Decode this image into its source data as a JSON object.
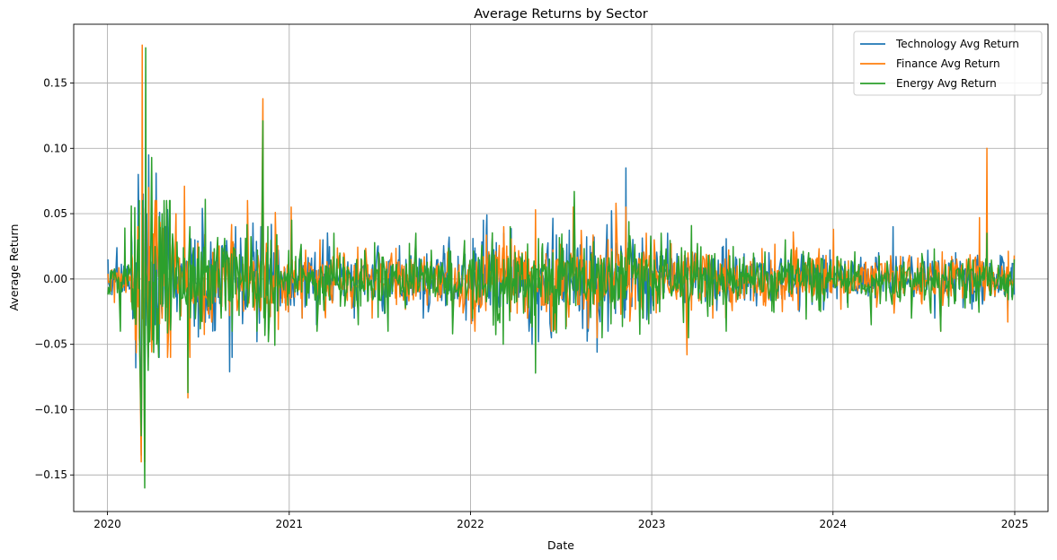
{
  "chart_data": {
    "type": "line",
    "title": "Average Returns by Sector",
    "xlabel": "Date",
    "ylabel": "Average Return",
    "x_range": [
      "2020-01-02",
      "2024-12-31"
    ],
    "xlim": [
      "2019-10-25",
      "2025-03-09"
    ],
    "ylim": [
      -0.178,
      0.195
    ],
    "x_ticks": [
      "2020",
      "2021",
      "2022",
      "2023",
      "2024",
      "2025"
    ],
    "y_ticks": [
      "-0.15",
      "-0.10",
      "-0.05",
      "0.00",
      "0.05",
      "0.10",
      "0.15"
    ],
    "grid": true,
    "legend_position": "top-right",
    "series": [
      {
        "name": "Technology Avg Return",
        "color": "#1f77b4",
        "points": [
          [
            "2020-01-02",
            0.015
          ],
          [
            "2020-01-10",
            -0.012
          ],
          [
            "2020-01-20",
            0.024
          ],
          [
            "2020-02-03",
            0.01
          ],
          [
            "2020-02-20",
            -0.005
          ],
          [
            "2020-02-27",
            -0.068
          ],
          [
            "2020-03-03",
            0.08
          ],
          [
            "2020-03-09",
            -0.135
          ],
          [
            "2020-03-13",
            0.065
          ],
          [
            "2020-03-16",
            -0.12
          ],
          [
            "2020-03-20",
            0.05
          ],
          [
            "2020-03-24",
            0.095
          ],
          [
            "2020-04-01",
            -0.045
          ],
          [
            "2020-04-08",
            0.081
          ],
          [
            "2020-04-20",
            -0.03
          ],
          [
            "2020-05-05",
            0.04
          ],
          [
            "2020-05-20",
            -0.025
          ],
          [
            "2020-06-11",
            -0.055
          ],
          [
            "2020-06-25",
            0.03
          ],
          [
            "2020-07-10",
            0.054
          ],
          [
            "2020-07-24",
            -0.03
          ],
          [
            "2020-08-10",
            0.02
          ],
          [
            "2020-09-03",
            -0.071
          ],
          [
            "2020-09-08",
            -0.06
          ],
          [
            "2020-09-15",
            0.04
          ],
          [
            "2020-10-01",
            -0.02
          ],
          [
            "2020-10-28",
            -0.048
          ],
          [
            "2020-11-05",
            0.04
          ],
          [
            "2020-11-09",
            0.09
          ],
          [
            "2020-12-01",
            0.02
          ],
          [
            "2021-01-04",
            -0.02
          ],
          [
            "2021-01-27",
            -0.03
          ],
          [
            "2021-02-25",
            -0.035
          ],
          [
            "2021-03-10",
            0.03
          ],
          [
            "2021-05-12",
            -0.03
          ],
          [
            "2021-09-28",
            -0.03
          ],
          [
            "2021-11-26",
            -0.025
          ],
          [
            "2022-01-05",
            -0.032
          ],
          [
            "2022-01-27",
            0.045
          ],
          [
            "2022-02-03",
            0.049
          ],
          [
            "2022-03-09",
            0.035
          ],
          [
            "2022-04-29",
            -0.04
          ],
          [
            "2022-05-05",
            -0.05
          ],
          [
            "2022-05-18",
            -0.048
          ],
          [
            "2022-06-13",
            -0.045
          ],
          [
            "2022-08-26",
            -0.04
          ],
          [
            "2022-09-13",
            -0.056
          ],
          [
            "2022-10-05",
            -0.04
          ],
          [
            "2022-11-10",
            0.085
          ],
          [
            "2022-12-15",
            -0.03
          ],
          [
            "2023-02-02",
            0.035
          ],
          [
            "2023-05-25",
            0.025
          ],
          [
            "2023-10-26",
            -0.02
          ],
          [
            "2024-05-01",
            0.04
          ],
          [
            "2024-07-24",
            -0.03
          ],
          [
            "2024-08-05",
            -0.035
          ],
          [
            "2024-11-06",
            0.025
          ],
          [
            "2024-12-18",
            -0.025
          ],
          [
            "2024-12-31",
            -0.012
          ]
        ]
      },
      {
        "name": "Finance Avg Return",
        "color": "#ff7f0e",
        "points": [
          [
            "2020-01-02",
            0.004
          ],
          [
            "2020-01-15",
            -0.018
          ],
          [
            "2020-02-05",
            0.012
          ],
          [
            "2020-02-24",
            -0.025
          ],
          [
            "2020-03-02",
            0.04
          ],
          [
            "2020-03-05",
            -0.045
          ],
          [
            "2020-03-09",
            -0.14
          ],
          [
            "2020-03-11",
            0.179
          ],
          [
            "2020-03-16",
            -0.14
          ],
          [
            "2020-03-18",
            0.06
          ],
          [
            "2020-03-24",
            0.07
          ],
          [
            "2020-04-06",
            0.06
          ],
          [
            "2020-04-20",
            -0.03
          ],
          [
            "2020-05-18",
            0.05
          ],
          [
            "2020-06-04",
            0.071
          ],
          [
            "2020-06-11",
            -0.091
          ],
          [
            "2020-06-15",
            -0.06
          ],
          [
            "2020-07-15",
            0.034
          ],
          [
            "2020-09-03",
            -0.028
          ],
          [
            "2020-10-28",
            -0.03
          ],
          [
            "2020-11-09",
            0.138
          ],
          [
            "2020-11-12",
            -0.02
          ],
          [
            "2021-01-05",
            0.055
          ],
          [
            "2021-01-27",
            -0.03
          ],
          [
            "2021-03-04",
            0.03
          ],
          [
            "2021-06-17",
            -0.03
          ],
          [
            "2021-11-26",
            -0.03
          ],
          [
            "2022-01-10",
            -0.04
          ],
          [
            "2022-03-09",
            0.04
          ],
          [
            "2022-04-26",
            -0.03
          ],
          [
            "2022-05-12",
            0.053
          ],
          [
            "2022-06-13",
            -0.04
          ],
          [
            "2022-07-27",
            0.055
          ],
          [
            "2022-09-13",
            -0.045
          ],
          [
            "2022-10-21",
            0.058
          ],
          [
            "2022-11-10",
            0.055
          ],
          [
            "2023-01-06",
            0.03
          ],
          [
            "2023-03-13",
            -0.058
          ],
          [
            "2023-05-04",
            -0.03
          ],
          [
            "2023-09-21",
            -0.025
          ],
          [
            "2024-01-02",
            0.038
          ],
          [
            "2024-08-05",
            -0.04
          ],
          [
            "2024-10-22",
            0.047
          ],
          [
            "2024-11-06",
            0.1
          ],
          [
            "2024-12-18",
            -0.033
          ],
          [
            "2024-12-31",
            0.018
          ]
        ]
      },
      {
        "name": "Energy Avg Return",
        "color": "#2ca02c",
        "points": [
          [
            "2020-01-02",
            -0.012
          ],
          [
            "2020-01-10",
            0.006
          ],
          [
            "2020-01-27",
            -0.04
          ],
          [
            "2020-02-05",
            0.039
          ],
          [
            "2020-02-24",
            -0.03
          ],
          [
            "2020-03-02",
            0.03
          ],
          [
            "2020-03-09",
            -0.12
          ],
          [
            "2020-03-12",
            0.06
          ],
          [
            "2020-03-16",
            -0.16
          ],
          [
            "2020-03-18",
            0.177
          ],
          [
            "2020-03-23",
            -0.07
          ],
          [
            "2020-03-30",
            0.093
          ],
          [
            "2020-04-09",
            -0.05
          ],
          [
            "2020-04-20",
            0.05
          ],
          [
            "2020-05-05",
            0.06
          ],
          [
            "2020-06-11",
            -0.087
          ],
          [
            "2020-06-15",
            0.04
          ],
          [
            "2020-07-16",
            0.061
          ],
          [
            "2020-08-17",
            -0.03
          ],
          [
            "2020-09-08",
            -0.04
          ],
          [
            "2020-10-28",
            -0.04
          ],
          [
            "2020-11-09",
            0.121
          ],
          [
            "2020-11-20",
            -0.048
          ],
          [
            "2021-01-06",
            0.045
          ],
          [
            "2021-02-26",
            -0.04
          ],
          [
            "2021-04-01",
            0.035
          ],
          [
            "2021-05-20",
            -0.035
          ],
          [
            "2021-07-19",
            -0.04
          ],
          [
            "2021-09-13",
            0.035
          ],
          [
            "2021-11-26",
            -0.042
          ],
          [
            "2022-01-05",
            -0.03
          ],
          [
            "2022-03-08",
            -0.05
          ],
          [
            "2022-03-22",
            0.04
          ],
          [
            "2022-05-12",
            -0.072
          ],
          [
            "2022-06-17",
            -0.04
          ],
          [
            "2022-07-29",
            0.067
          ],
          [
            "2022-09-23",
            -0.045
          ],
          [
            "2022-11-18",
            0.033
          ],
          [
            "2023-01-20",
            0.035
          ],
          [
            "2023-03-16",
            -0.045
          ],
          [
            "2023-05-31",
            -0.04
          ],
          [
            "2023-09-27",
            0.03
          ],
          [
            "2024-03-18",
            -0.035
          ],
          [
            "2024-06-07",
            -0.03
          ],
          [
            "2024-08-05",
            -0.04
          ],
          [
            "2024-11-06",
            0.035
          ],
          [
            "2024-12-31",
            0.015
          ]
        ]
      }
    ]
  }
}
